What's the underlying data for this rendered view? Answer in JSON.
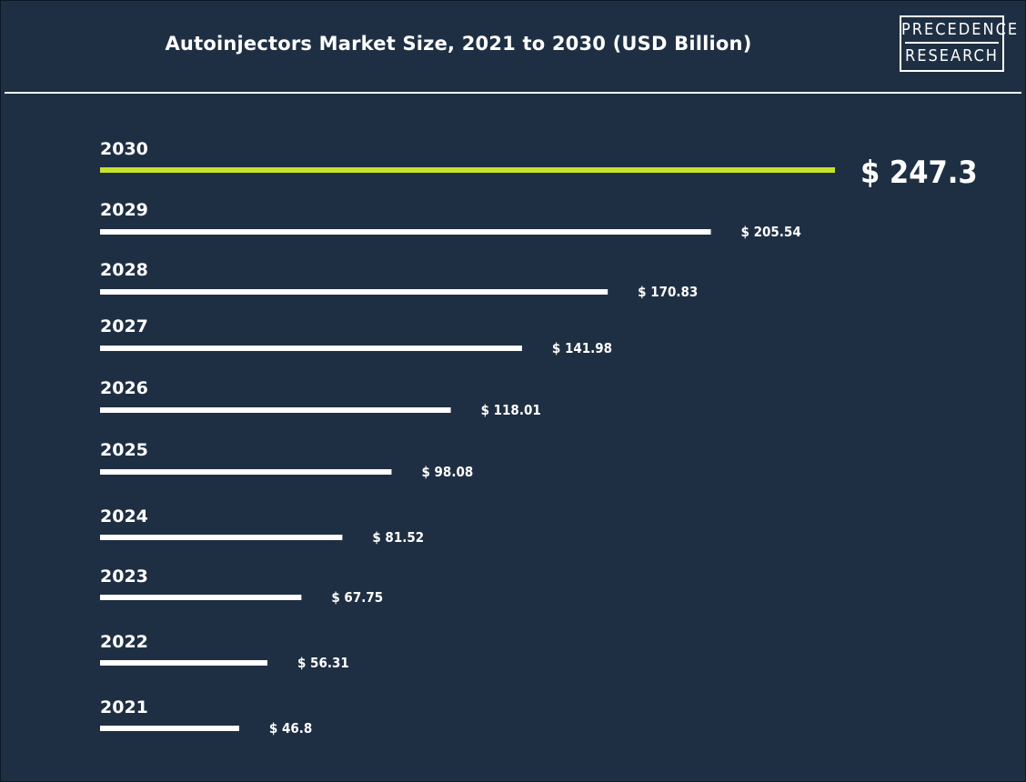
{
  "title": "Autoinjectors Market Size, 2021 to 2030 (USD Billion)",
  "logo": {
    "line1": "PRECEDENCE",
    "line2": "RESEARCH"
  },
  "colors": {
    "background": "#1f2f43",
    "bar": "#ffffff",
    "highlight": "#c8e22a",
    "text": "#ffffff"
  },
  "chart_data": {
    "type": "bar",
    "orientation": "horizontal",
    "title": "Autoinjectors Market Size, 2021 to 2030 (USD Billion)",
    "categories": [
      "2030",
      "2029",
      "2028",
      "2027",
      "2026",
      "2025",
      "2024",
      "2023",
      "2022",
      "2021"
    ],
    "values": [
      247.3,
      205.54,
      170.83,
      141.98,
      118.01,
      98.08,
      81.52,
      67.75,
      56.31,
      46.8
    ],
    "value_labels": [
      "$ 247.3",
      "$ 205.54",
      "$ 170.83",
      "$ 141.98",
      "$ 118.01",
      "$ 98.08",
      "$ 81.52",
      "$ 67.75",
      "$ 56.31",
      "$ 46.8"
    ],
    "highlight": "2030",
    "grid": false
  }
}
